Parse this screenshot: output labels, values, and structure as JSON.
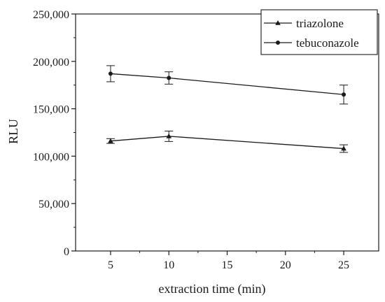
{
  "chart_data": {
    "type": "line",
    "title": "",
    "xlabel": "extraction time (min)",
    "ylabel": "RLU",
    "xlim": [
      2,
      28
    ],
    "ylim": [
      0,
      250000
    ],
    "x_ticks": [
      5,
      10,
      15,
      20,
      25
    ],
    "x_tick_labels": [
      "5",
      "10",
      "15",
      "20",
      "25"
    ],
    "y_ticks": [
      0,
      50000,
      100000,
      150000,
      200000,
      250000
    ],
    "y_tick_labels": [
      "0",
      "50,000",
      "100,000",
      "150,000",
      "200,000",
      "250,000"
    ],
    "grid": false,
    "legend_position": "top-right",
    "series": [
      {
        "name": "triazolone",
        "marker": "triangle",
        "x": [
          5,
          10,
          25
        ],
        "y": [
          116000,
          121000,
          108000
        ],
        "error": [
          2500,
          5500,
          4000
        ]
      },
      {
        "name": "tebuconazole",
        "marker": "circle",
        "x": [
          5,
          10,
          25
        ],
        "y": [
          187000,
          182500,
          165000
        ],
        "error": [
          8500,
          6500,
          10000
        ]
      }
    ]
  }
}
